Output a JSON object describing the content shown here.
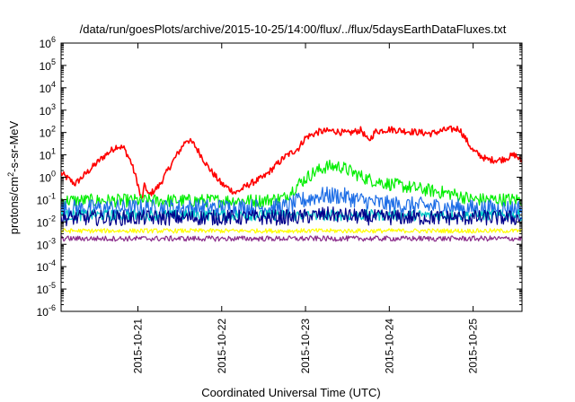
{
  "chart_data": {
    "type": "line",
    "title": "/data/run/goesPlots/archive/2015-10-25/14:00/flux/../flux/5daysEarthDataFluxes.txt",
    "xlabel": "Coordinated Universal Time (UTC)",
    "ylabel_parts": [
      "protons/cm",
      "2",
      "-s-sr-MeV"
    ],
    "x_range": [
      "2015-10-20 02:00",
      "2015-10-25 14:00"
    ],
    "x_ticks": [
      "2015-10-21",
      "2015-10-22",
      "2015-10-23",
      "2015-10-24",
      "2015-10-25"
    ],
    "y_scale": "log",
    "y_range": [
      1e-06,
      1000000.0
    ],
    "y_ticks": [
      {
        "base": "10",
        "exp": "6"
      },
      {
        "base": "10",
        "exp": "5"
      },
      {
        "base": "10",
        "exp": "4"
      },
      {
        "base": "10",
        "exp": "3"
      },
      {
        "base": "10",
        "exp": "2"
      },
      {
        "base": "10",
        "exp": "1"
      },
      {
        "base": "10",
        "exp": "0"
      },
      {
        "base": "10",
        "exp": "-1"
      },
      {
        "base": "10",
        "exp": "-2"
      },
      {
        "base": "10",
        "exp": "-3"
      },
      {
        "base": "10",
        "exp": "-4"
      },
      {
        "base": "10",
        "exp": "-5"
      },
      {
        "base": "10",
        "exp": "-6"
      }
    ],
    "grid": false,
    "legend": "none",
    "series": [
      {
        "color": "#ff0000",
        "noise": 0.15,
        "x": [
          "2015-10-20 02:00",
          "2015-10-20 06:00",
          "2015-10-20 10:00",
          "2015-10-20 14:00",
          "2015-10-20 18:00",
          "2015-10-20 20:00",
          "2015-10-20 22:00",
          "2015-10-21 00:00",
          "2015-10-21 01:00",
          "2015-10-21 02:00",
          "2015-10-21 03:00",
          "2015-10-21 06:00",
          "2015-10-21 10:00",
          "2015-10-21 14:00",
          "2015-10-21 16:00",
          "2015-10-21 18:00",
          "2015-10-21 20:00",
          "2015-10-21 22:00",
          "2015-10-22 00:00",
          "2015-10-22 04:00",
          "2015-10-22 08:00",
          "2015-10-22 12:00",
          "2015-10-22 14:00",
          "2015-10-22 18:00",
          "2015-10-22 22:00",
          "2015-10-23 00:00",
          "2015-10-23 04:00",
          "2015-10-23 08:00",
          "2015-10-23 12:00",
          "2015-10-23 16:00",
          "2015-10-23 18:00",
          "2015-10-23 20:00",
          "2015-10-24 00:00",
          "2015-10-24 06:00",
          "2015-10-24 12:00",
          "2015-10-24 16:00",
          "2015-10-24 20:00",
          "2015-10-25 00:00",
          "2015-10-25 04:00",
          "2015-10-25 08:00",
          "2015-10-25 12:00",
          "2015-10-25 14:00"
        ],
        "y": [
          1.5,
          0.5,
          2,
          8,
          25,
          20,
          5,
          0.5,
          0.08,
          0.5,
          0.15,
          0.4,
          5,
          50,
          30,
          10,
          3,
          1.2,
          0.5,
          0.2,
          0.5,
          1,
          2,
          8,
          20,
          60,
          110,
          120,
          90,
          130,
          40,
          110,
          140,
          110,
          90,
          130,
          150,
          15,
          6,
          6,
          10,
          5
        ]
      },
      {
        "color": "#00ee00",
        "noise": 0.3,
        "x": [
          "2015-10-20 02:00",
          "2015-10-22 12:00",
          "2015-10-22 18:00",
          "2015-10-22 22:00",
          "2015-10-23 02:00",
          "2015-10-23 06:00",
          "2015-10-23 10:00",
          "2015-10-23 14:00",
          "2015-10-23 18:00",
          "2015-10-24 00:00",
          "2015-10-24 06:00",
          "2015-10-24 12:00",
          "2015-10-24 18:00",
          "2015-10-25 00:00",
          "2015-10-25 14:00"
        ],
        "y": [
          0.09,
          0.09,
          0.12,
          0.5,
          1.5,
          3,
          3,
          1.5,
          0.8,
          0.5,
          0.35,
          0.25,
          0.18,
          0.1,
          0.1
        ]
      },
      {
        "color": "#1e6ee6",
        "noise": 0.4,
        "x": [
          "2015-10-20 02:00",
          "2015-10-22 18:00",
          "2015-10-22 22:00",
          "2015-10-23 04:00",
          "2015-10-23 10:00",
          "2015-10-23 16:00",
          "2015-10-24 00:00",
          "2015-10-24 12:00",
          "2015-10-25 00:00",
          "2015-10-25 14:00"
        ],
        "y": [
          0.04,
          0.045,
          0.08,
          0.15,
          0.15,
          0.09,
          0.06,
          0.05,
          0.04,
          0.04
        ]
      },
      {
        "color": "#00c8c8",
        "noise": 0.25,
        "x": [
          "2015-10-20 02:00",
          "2015-10-25 14:00"
        ],
        "y": [
          0.02,
          0.02
        ]
      },
      {
        "color": "#00008b",
        "noise": 0.35,
        "x": [
          "2015-10-20 02:00",
          "2015-10-22 22:00",
          "2015-10-23 06:00",
          "2015-10-23 18:00",
          "2015-10-25 14:00"
        ],
        "y": [
          0.015,
          0.016,
          0.022,
          0.016,
          0.015
        ]
      },
      {
        "color": "#ffff00",
        "noise": 0.1,
        "x": [
          "2015-10-20 02:00",
          "2015-10-25 14:00"
        ],
        "y": [
          0.004,
          0.004
        ]
      },
      {
        "color": "#8b2c8b",
        "noise": 0.12,
        "x": [
          "2015-10-20 02:00",
          "2015-10-25 14:00"
        ],
        "y": [
          0.0018,
          0.0018
        ]
      }
    ]
  }
}
